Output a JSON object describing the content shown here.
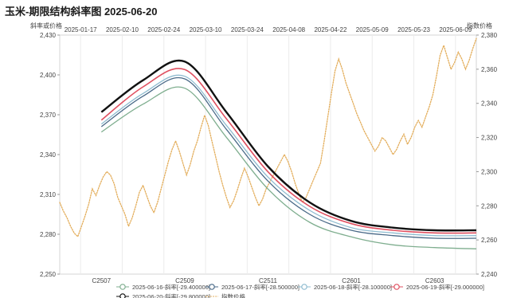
{
  "chart_data": {
    "type": "line",
    "title": "玉米-期限结构斜率图 2025-06-20",
    "ylabel_left": "斜率或价格",
    "ylabel_right": "指数价格",
    "top_axis_dates": [
      "2025-01-17",
      "2025-02-10",
      "2025-02-24",
      "2025-03-10",
      "2025-03-24",
      "2025-04-08",
      "2025-04-22",
      "2025-05-09",
      "2025-05-23",
      "2025-06-09"
    ],
    "contracts": [
      "C2507",
      "C2509",
      "C2511",
      "C2601",
      "C2603"
    ],
    "y_left": {
      "range": [
        2250,
        2430
      ],
      "ticks": [
        2250,
        2280,
        2310,
        2340,
        2370,
        2400,
        2430
      ],
      "tick_labels": [
        "2,250",
        "2,280",
        "2,310",
        "2,340",
        "2,370",
        "2,400",
        "2,430"
      ]
    },
    "y_right": {
      "range": [
        2240,
        2380
      ],
      "ticks": [
        2240,
        2260,
        2280,
        2300,
        2320,
        2340,
        2360,
        2380
      ],
      "tick_labels": [
        "2,240",
        "2,260",
        "2,280",
        "2,300",
        "2,320",
        "2,340",
        "2,360",
        "2,380"
      ]
    },
    "curve_x": [
      0.5,
      1.0,
      1.5,
      2.0,
      2.5,
      3.0,
      3.5,
      4.0,
      4.5,
      5.0
    ],
    "series": [
      {
        "name": "2025-06-16-斜率[-29.400000]",
        "color": "#7fae8f",
        "width": 1.3,
        "values": [
          2357,
          2378,
          2390,
          2353,
          2314,
          2289,
          2278,
          2272,
          2270,
          2269
        ]
      },
      {
        "name": "2025-06-17-斜率[-28.500000]",
        "color": "#4a6a88",
        "width": 1.3,
        "values": [
          2361,
          2384,
          2397,
          2359,
          2320,
          2295,
          2283,
          2279,
          2277,
          2277
        ]
      },
      {
        "name": "2025-06-18-斜率[-28.100000]",
        "color": "#8fbcd0",
        "width": 1.3,
        "values": [
          2363,
          2386,
          2399,
          2362,
          2323,
          2298,
          2285,
          2281,
          2279,
          2279
        ]
      },
      {
        "name": "2025-06-19-斜率[-29.000000]",
        "color": "#e05060",
        "width": 1.6,
        "values": [
          2366,
          2391,
          2404,
          2367,
          2327,
          2301,
          2288,
          2283,
          2281,
          2281
        ]
      },
      {
        "name": "2025-06-20-斜率[-29.800000]",
        "color": "#111111",
        "width": 2.4,
        "values": [
          2372,
          2396,
          2410,
          2372,
          2331,
          2304,
          2290,
          2285,
          2283,
          2283
        ]
      }
    ],
    "index_series": {
      "name": "指数价格",
      "color": "#e3ad5a",
      "date_from": "2025-01-17",
      "date_to": "2025-06-20",
      "values": [
        2282,
        2277,
        2273,
        2268,
        2264,
        2262,
        2268,
        2274,
        2281,
        2290,
        2286,
        2292,
        2297,
        2300,
        2298,
        2293,
        2285,
        2280,
        2275,
        2268,
        2273,
        2280,
        2288,
        2292,
        2286,
        2280,
        2276,
        2282,
        2290,
        2298,
        2306,
        2313,
        2318,
        2312,
        2305,
        2298,
        2304,
        2312,
        2318,
        2326,
        2333,
        2327,
        2318,
        2309,
        2300,
        2292,
        2285,
        2279,
        2283,
        2289,
        2296,
        2302,
        2297,
        2291,
        2285,
        2280,
        2284,
        2290,
        2294,
        2298,
        2302,
        2306,
        2310,
        2306,
        2300,
        2293,
        2287,
        2282,
        2285,
        2290,
        2295,
        2300,
        2305,
        2318,
        2332,
        2346,
        2359,
        2366,
        2360,
        2352,
        2346,
        2340,
        2334,
        2329,
        2324,
        2320,
        2316,
        2312,
        2315,
        2320,
        2318,
        2314,
        2310,
        2313,
        2318,
        2322,
        2316,
        2320,
        2326,
        2330,
        2326,
        2332,
        2338,
        2345,
        2356,
        2368,
        2374,
        2367,
        2360,
        2364,
        2370,
        2366,
        2360,
        2365,
        2372,
        2378
      ]
    },
    "legend_placement": "bottom",
    "grid": "vertical"
  }
}
